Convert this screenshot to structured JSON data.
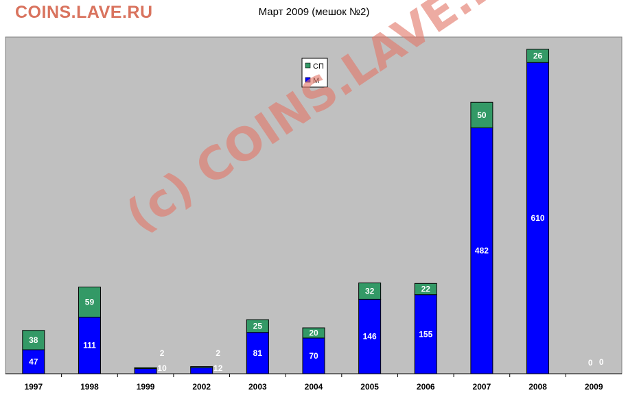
{
  "site": {
    "brand": "COINS.LAVE.RU"
  },
  "chart_data": {
    "type": "bar",
    "stacked": true,
    "title": "Март 2009 (мешок №2)",
    "categories": [
      "1997",
      "1998",
      "1999",
      "2002",
      "2003",
      "2004",
      "2005",
      "2006",
      "2007",
      "2008",
      "2009"
    ],
    "series": [
      {
        "name": "М",
        "color": "#0000ff",
        "values": [
          47,
          111,
          10,
          12,
          81,
          70,
          146,
          155,
          482,
          610,
          0
        ]
      },
      {
        "name": "СП",
        "color": "#339966",
        "values": [
          38,
          59,
          2,
          2,
          25,
          20,
          32,
          22,
          50,
          26,
          0
        ]
      }
    ],
    "ylim": [
      0,
      660
    ],
    "legend_position": "top-center",
    "grid": false,
    "plot_background": "#c0c0c0"
  },
  "watermark": {
    "text": "(c) COINS.LAVE.RU"
  }
}
